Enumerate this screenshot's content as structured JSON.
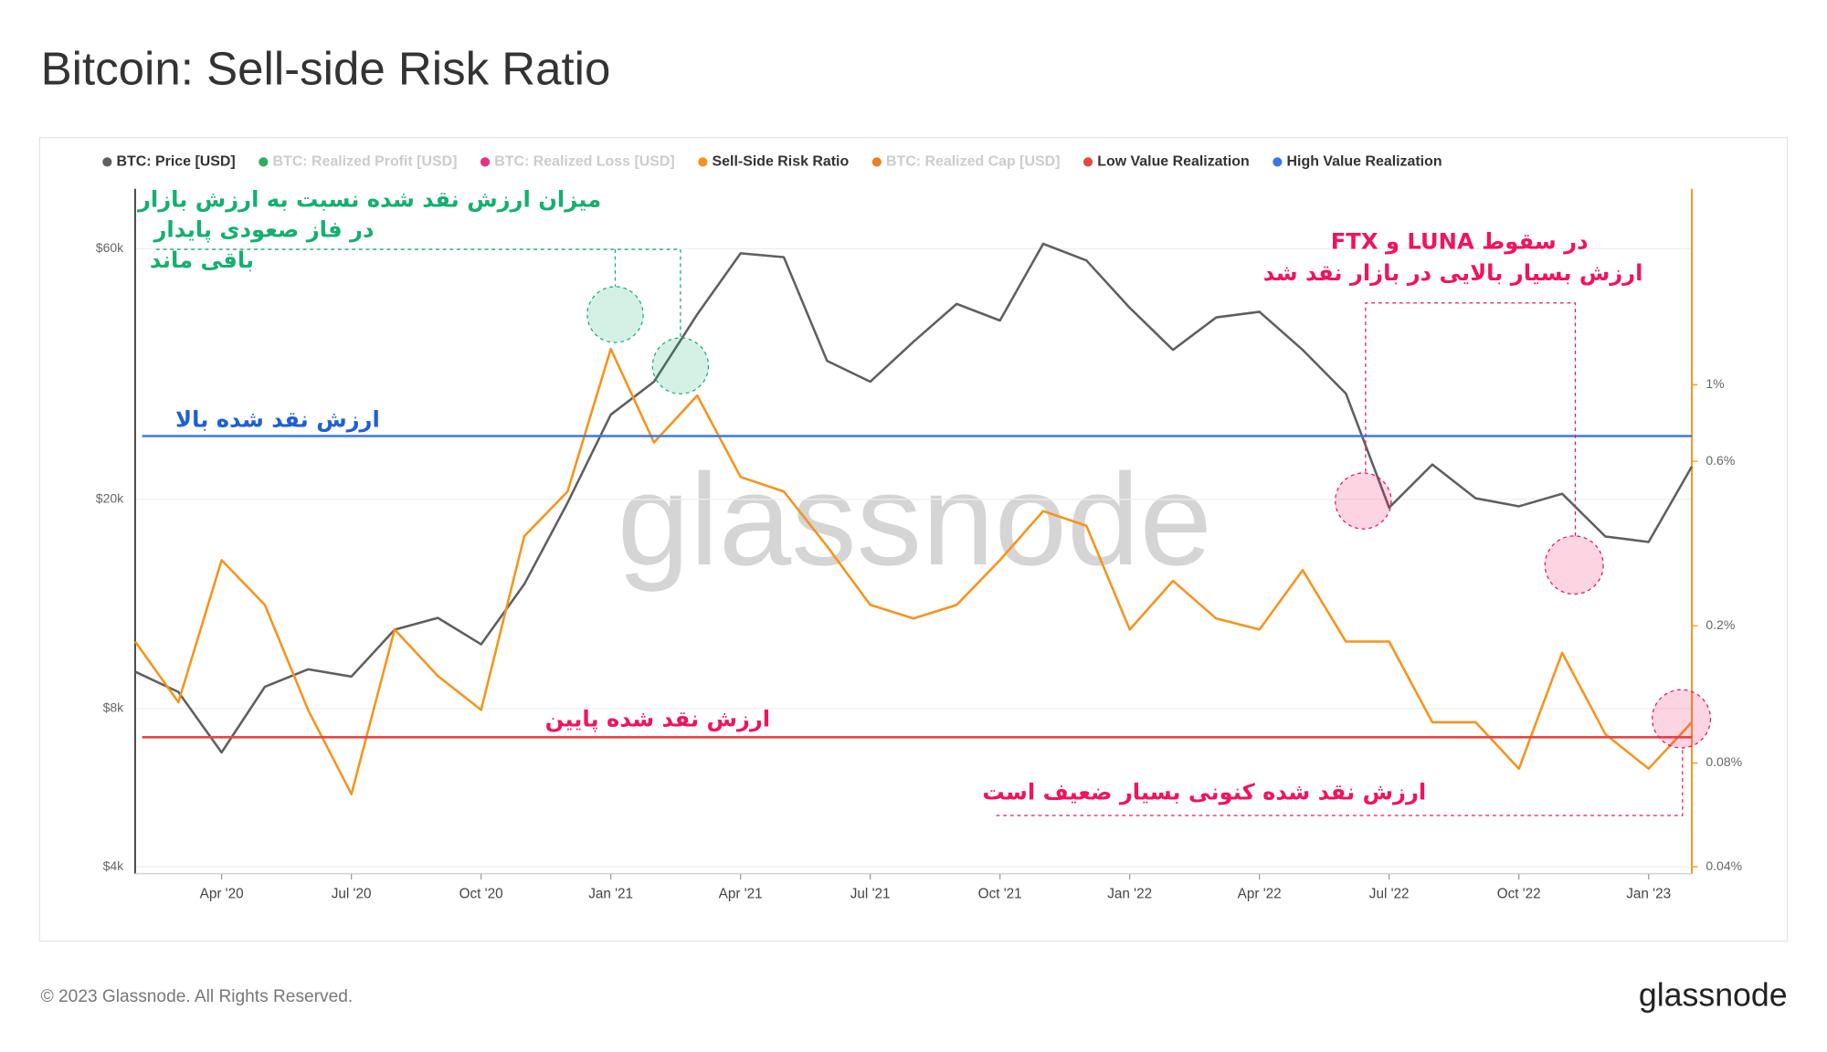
{
  "chart_data": {
    "type": "line",
    "title": "Bitcoin: Sell-side Risk Ratio",
    "x": [
      "2020-02",
      "2020-03",
      "2020-04",
      "2020-05",
      "2020-06",
      "2020-07",
      "2020-08",
      "2020-09",
      "2020-10",
      "2020-11",
      "2020-12",
      "2021-01",
      "2021-02",
      "2021-03",
      "2021-04",
      "2021-05",
      "2021-06",
      "2021-07",
      "2021-08",
      "2021-09",
      "2021-10",
      "2021-11",
      "2021-12",
      "2022-01",
      "2022-02",
      "2022-03",
      "2022-04",
      "2022-05",
      "2022-06",
      "2022-07",
      "2022-08",
      "2022-09",
      "2022-10",
      "2022-11",
      "2022-12",
      "2023-01",
      "2023-02"
    ],
    "xlim": [
      "2020-02",
      "2023-02"
    ],
    "xticks": [
      {
        "value": "2020-04",
        "label": "Apr '20"
      },
      {
        "value": "2020-07",
        "label": "Jul '20"
      },
      {
        "value": "2020-10",
        "label": "Oct '20"
      },
      {
        "value": "2021-01",
        "label": "Jan '21"
      },
      {
        "value": "2021-04",
        "label": "Apr '21"
      },
      {
        "value": "2021-07",
        "label": "Jul '21"
      },
      {
        "value": "2021-10",
        "label": "Oct '21"
      },
      {
        "value": "2022-01",
        "label": "Jan '22"
      },
      {
        "value": "2022-04",
        "label": "Apr '22"
      },
      {
        "value": "2022-07",
        "label": "Jul '22"
      },
      {
        "value": "2022-10",
        "label": "Oct '22"
      },
      {
        "value": "2023-01",
        "label": "Jan '23"
      }
    ],
    "ylim": [
      3880,
      78000
    ],
    "yticks": [
      {
        "value": 4000,
        "label": "$4k"
      },
      {
        "value": 8000,
        "label": "$8k"
      },
      {
        "value": 20000,
        "label": "$20k"
      },
      {
        "value": 60000,
        "label": "$60k"
      }
    ],
    "y2lim": [
      0.0382,
      3.7
    ],
    "y2ticks": [
      {
        "value": 0.04,
        "label": "0.04%"
      },
      {
        "value": 0.08,
        "label": "0.08%"
      },
      {
        "value": 0.2,
        "label": "0.2%"
      },
      {
        "value": 0.6,
        "label": "0.6%"
      },
      {
        "value": 1,
        "label": "1%"
      }
    ],
    "log_scale": true,
    "grid": true,
    "series": [
      {
        "name": "BTC: Price [USD]",
        "color": "#5f5f5f",
        "axis": "y",
        "values": [
          9400,
          8600,
          6600,
          8800,
          9500,
          9200,
          11300,
          11900,
          10600,
          13800,
          19700,
          29000,
          33500,
          45000,
          58800,
          57800,
          36700,
          33500,
          39900,
          47100,
          43800,
          61300,
          57000,
          46300,
          38500,
          44400,
          45500,
          38500,
          31800,
          19300,
          23300,
          20100,
          19400,
          20500,
          17000,
          16600,
          23100
        ]
      },
      {
        "name": "BTC: Realized Profit [USD]",
        "color": "#1aa34a",
        "visible": false
      },
      {
        "name": "BTC: Realized Loss [USD]",
        "color": "#e6197a",
        "visible": false
      },
      {
        "name": "Sell-Side Risk Ratio",
        "color": "#f7931a",
        "axis": "y2",
        "values": [
          0.18,
          0.12,
          0.31,
          0.23,
          0.114,
          0.065,
          0.195,
          0.143,
          0.114,
          0.364,
          0.49,
          1.27,
          0.68,
          0.93,
          0.54,
          0.49,
          0.34,
          0.23,
          0.21,
          0.23,
          0.31,
          0.43,
          0.39,
          0.195,
          0.27,
          0.21,
          0.195,
          0.29,
          0.18,
          0.18,
          0.105,
          0.105,
          0.077,
          0.167,
          0.097,
          0.077,
          0.105
        ]
      },
      {
        "name": "BTC: Realized Cap [USD]",
        "color": "#e8730c",
        "visible": false
      },
      {
        "name": "Low Value Realization",
        "color": "#e84545",
        "axis": "y2",
        "value": 0.095
      },
      {
        "name": "High Value Realization",
        "color": "#3b78e7",
        "axis": "y2",
        "value": 0.71
      }
    ],
    "annotations": [
      {
        "text": "میزان ارزش نقد شده نسبت به ارزش بازار",
        "color": "#14b070"
      },
      {
        "text": "در فاز صعودی  پایدار",
        "color": "#14b070"
      },
      {
        "text": "باقی ماند",
        "color": "#14b070"
      },
      {
        "text": "ارزش نقد شده بالا",
        "color": "#1f5fd6"
      },
      {
        "text": "در سقوط LUNA و FTX",
        "color": "#f0135f"
      },
      {
        "text": "ارزش بسیار بالایی در بازار نقد شد",
        "color": "#f0135f"
      },
      {
        "text": "ارزش نقد شده پایین",
        "color": "#f0135f"
      },
      {
        "text": "ارزش نقد شده کنونی بسیار ضعیف است",
        "color": "#f0135f"
      }
    ],
    "watermark": "glassnode",
    "footer": "© 2023 Glassnode. All Rights Reserved.",
    "logo": "glassnode"
  }
}
